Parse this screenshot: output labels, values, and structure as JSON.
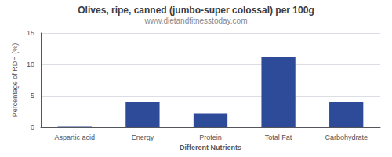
{
  "chart_data": {
    "type": "bar",
    "title": "Olives, ripe, canned (jumbo-super colossal) per 100g",
    "subtitle": "www.dietandfitnesstoday.com",
    "xlabel": "Different Nutrients",
    "ylabel": "Percentage of RDH (%)",
    "categories": [
      "Aspartic acid",
      "Energy",
      "Protein",
      "Total Fat",
      "Carbohydrate"
    ],
    "values": [
      0.05,
      4.0,
      2.2,
      11.2,
      4.0
    ],
    "color": "#2e4b99",
    "ylim": [
      0,
      15
    ],
    "yticks": [
      0,
      5,
      10,
      15
    ],
    "grid": true
  }
}
